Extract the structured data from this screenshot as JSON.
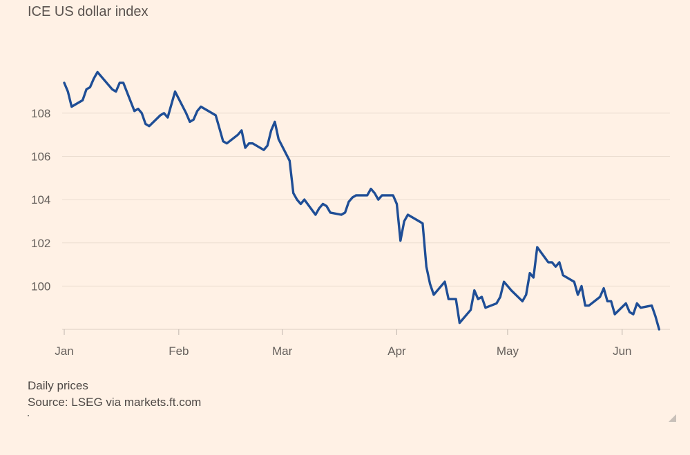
{
  "chart_data": {
    "type": "line",
    "title": "ICE US dollar index",
    "subtitle": "Daily prices",
    "source": "Source: LSEG via markets.ft.com",
    "xlabel": "",
    "ylabel": "",
    "x_ticks": [
      "Jan",
      "Feb",
      "Mar",
      "Apr",
      "May",
      "Jun"
    ],
    "y_ticks": [
      100,
      102,
      104,
      106,
      108
    ],
    "ylim": [
      98,
      110.2
    ],
    "xlim": [
      "2025-01-01",
      "2025-06-13"
    ],
    "grid": true,
    "legend": "none",
    "line_color": "#1F4E96",
    "series": [
      {
        "values": [
          [
            "2025-01-01",
            109.4
          ],
          [
            "2025-01-02",
            109.0
          ],
          [
            "2025-01-03",
            108.3
          ],
          [
            "2025-01-06",
            108.6
          ],
          [
            "2025-01-07",
            109.1
          ],
          [
            "2025-01-08",
            109.2
          ],
          [
            "2025-01-09",
            109.6
          ],
          [
            "2025-01-10",
            109.9
          ],
          [
            "2025-01-13",
            109.3
          ],
          [
            "2025-01-14",
            109.1
          ],
          [
            "2025-01-15",
            109.0
          ],
          [
            "2025-01-16",
            109.4
          ],
          [
            "2025-01-17",
            109.4
          ],
          [
            "2025-01-20",
            108.1
          ],
          [
            "2025-01-21",
            108.2
          ],
          [
            "2025-01-22",
            108.0
          ],
          [
            "2025-01-23",
            107.5
          ],
          [
            "2025-01-24",
            107.4
          ],
          [
            "2025-01-27",
            107.9
          ],
          [
            "2025-01-28",
            108.0
          ],
          [
            "2025-01-29",
            107.8
          ],
          [
            "2025-01-30",
            108.4
          ],
          [
            "2025-01-31",
            109.0
          ],
          [
            "2025-02-03",
            108.0
          ],
          [
            "2025-02-04",
            107.6
          ],
          [
            "2025-02-05",
            107.7
          ],
          [
            "2025-02-06",
            108.1
          ],
          [
            "2025-02-07",
            108.3
          ],
          [
            "2025-02-10",
            108.0
          ],
          [
            "2025-02-11",
            107.9
          ],
          [
            "2025-02-12",
            107.3
          ],
          [
            "2025-02-13",
            106.7
          ],
          [
            "2025-02-14",
            106.6
          ],
          [
            "2025-02-17",
            107.0
          ],
          [
            "2025-02-18",
            107.2
          ],
          [
            "2025-02-19",
            106.4
          ],
          [
            "2025-02-20",
            106.6
          ],
          [
            "2025-02-21",
            106.6
          ],
          [
            "2025-02-24",
            106.3
          ],
          [
            "2025-02-25",
            106.5
          ],
          [
            "2025-02-26",
            107.2
          ],
          [
            "2025-02-27",
            107.6
          ],
          [
            "2025-02-28",
            106.8
          ],
          [
            "2025-03-03",
            105.8
          ],
          [
            "2025-03-04",
            104.3
          ],
          [
            "2025-03-05",
            104.0
          ],
          [
            "2025-03-06",
            103.8
          ],
          [
            "2025-03-07",
            104.0
          ],
          [
            "2025-03-10",
            103.3
          ],
          [
            "2025-03-11",
            103.6
          ],
          [
            "2025-03-12",
            103.8
          ],
          [
            "2025-03-13",
            103.7
          ],
          [
            "2025-03-14",
            103.4
          ],
          [
            "2025-03-17",
            103.3
          ],
          [
            "2025-03-18",
            103.4
          ],
          [
            "2025-03-19",
            103.9
          ],
          [
            "2025-03-20",
            104.1
          ],
          [
            "2025-03-21",
            104.2
          ],
          [
            "2025-03-24",
            104.2
          ],
          [
            "2025-03-25",
            104.5
          ],
          [
            "2025-03-26",
            104.3
          ],
          [
            "2025-03-27",
            104.0
          ],
          [
            "2025-03-28",
            104.2
          ],
          [
            "2025-03-31",
            104.2
          ],
          [
            "2025-04-01",
            103.8
          ],
          [
            "2025-04-02",
            102.1
          ],
          [
            "2025-04-03",
            103.0
          ],
          [
            "2025-04-04",
            103.3
          ],
          [
            "2025-04-07",
            103.0
          ],
          [
            "2025-04-08",
            102.9
          ],
          [
            "2025-04-09",
            100.9
          ],
          [
            "2025-04-10",
            100.1
          ],
          [
            "2025-04-11",
            99.6
          ],
          [
            "2025-04-14",
            100.2
          ],
          [
            "2025-04-15",
            99.4
          ],
          [
            "2025-04-16",
            99.4
          ],
          [
            "2025-04-17",
            99.4
          ],
          [
            "2025-04-18",
            98.3
          ],
          [
            "2025-04-21",
            98.9
          ],
          [
            "2025-04-22",
            99.8
          ],
          [
            "2025-04-23",
            99.4
          ],
          [
            "2025-04-24",
            99.5
          ],
          [
            "2025-04-25",
            99.0
          ],
          [
            "2025-04-28",
            99.2
          ],
          [
            "2025-04-29",
            99.5
          ],
          [
            "2025-04-30",
            100.2
          ],
          [
            "2025-05-01",
            100.0
          ],
          [
            "2025-05-02",
            99.8
          ],
          [
            "2025-05-05",
            99.3
          ],
          [
            "2025-05-06",
            99.6
          ],
          [
            "2025-05-07",
            100.6
          ],
          [
            "2025-05-08",
            100.4
          ],
          [
            "2025-05-09",
            101.8
          ],
          [
            "2025-05-12",
            101.1
          ],
          [
            "2025-05-13",
            101.1
          ],
          [
            "2025-05-14",
            100.9
          ],
          [
            "2025-05-15",
            101.1
          ],
          [
            "2025-05-16",
            100.5
          ],
          [
            "2025-05-19",
            100.2
          ],
          [
            "2025-05-20",
            99.6
          ],
          [
            "2025-05-21",
            100.0
          ],
          [
            "2025-05-22",
            99.1
          ],
          [
            "2025-05-23",
            99.1
          ],
          [
            "2025-05-26",
            99.5
          ],
          [
            "2025-05-27",
            99.9
          ],
          [
            "2025-05-28",
            99.3
          ],
          [
            "2025-05-29",
            99.3
          ],
          [
            "2025-05-30",
            98.7
          ],
          [
            "2025-06-02",
            99.2
          ],
          [
            "2025-06-03",
            98.8
          ],
          [
            "2025-06-04",
            98.7
          ],
          [
            "2025-06-05",
            99.2
          ],
          [
            "2025-06-06",
            99.0
          ],
          [
            "2025-06-09",
            99.1
          ],
          [
            "2025-06-10",
            98.6
          ],
          [
            "2025-06-11",
            98.0
          ]
        ]
      }
    ]
  }
}
